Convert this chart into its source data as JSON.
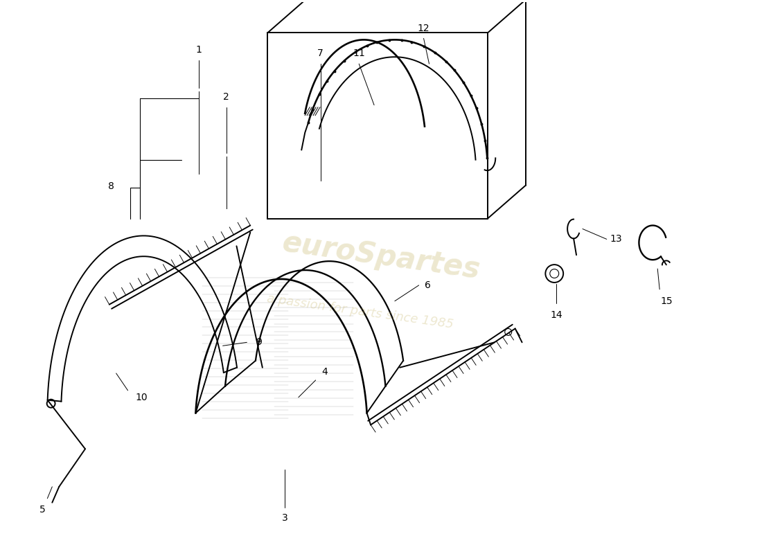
{
  "bg_color": "#ffffff",
  "line_color": "#000000",
  "watermark1": "euroSpartes",
  "watermark2": "a passion for parts since 1985",
  "watermark_color": "#c8b86e",
  "fig_width": 11.0,
  "fig_height": 8.0,
  "dpi": 100,
  "label_fontsize": 10
}
